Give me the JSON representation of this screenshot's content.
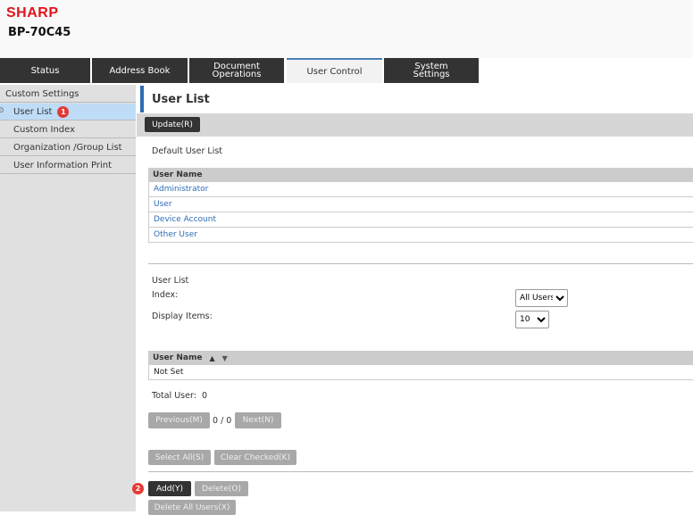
{
  "header": {
    "brand": "SHARP",
    "model": "BP-70C45"
  },
  "tabs": [
    {
      "label": "Status"
    },
    {
      "label": "Address Book"
    },
    {
      "label": "Document Operations"
    },
    {
      "label": "User Control"
    },
    {
      "label": "System Settings"
    }
  ],
  "sidebar": {
    "section": "Custom Settings",
    "items": [
      {
        "label": "User List",
        "badge": "1"
      },
      {
        "label": "Custom Index"
      },
      {
        "label": "Organization /Group List"
      },
      {
        "label": "User Information Print"
      }
    ]
  },
  "main": {
    "title": "User List",
    "update_label": "Update(R)",
    "default_list": {
      "heading": "Default User List",
      "column": "User Name",
      "rows": [
        "Administrator",
        "User",
        "Device Account",
        "Other User"
      ]
    },
    "user_list": {
      "heading": "User List",
      "index_label": "Index:",
      "index_value": "All Users",
      "display_label": "Display Items:",
      "display_value": "10",
      "column": "User Name",
      "sort_asc": "▲",
      "sort_desc": "▼",
      "rows": [
        "Not Set"
      ],
      "total_label": "Total User:",
      "total_value": "0"
    },
    "pager": {
      "previous": "Previous(M)",
      "page": "0 / 0",
      "next": "Next(N)"
    },
    "select_all": "Select All(S)",
    "clear_checked": "Clear Checked(K)",
    "add_badge": "2",
    "add": "Add(Y)",
    "delete": "Delete(O)",
    "delete_all": "Delete All Users(X)"
  },
  "colors": {
    "brand": "#e3141b",
    "accent": "#2d6db5",
    "selected": "#bfdcf7",
    "badge": "#e53935"
  }
}
